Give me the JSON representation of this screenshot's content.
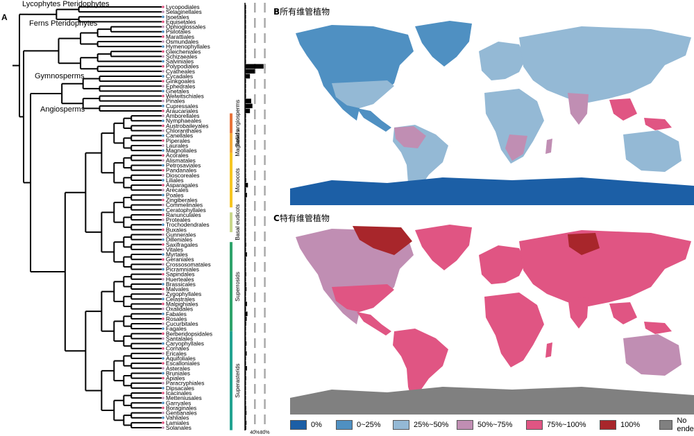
{
  "panels": {
    "a_letter": "A",
    "b_letter": "B",
    "b_title": "所有维管植物",
    "c_letter": "C",
    "c_title": "特有维管植物"
  },
  "tree": {
    "clade_labels": [
      {
        "id": "lycophytes",
        "text": "Lycophytes  Pteridophytes"
      },
      {
        "id": "ferns",
        "text": "Ferns  Pteridophytes"
      },
      {
        "id": "gymnosperms",
        "text": "Gymnosperms"
      },
      {
        "id": "angiosperms",
        "text": "Angiosperms"
      }
    ],
    "orders": [
      "Lycopodiales",
      "Selaginellales",
      "Isoetales",
      "Equisetales",
      "Ophioglossales",
      "Psilotales",
      "Marattiales",
      "Osmundales",
      "Hymenophyllales",
      "Gleicheniales",
      "Schizaeales",
      "Salviniales",
      "Polypodiales",
      "Cyatheales",
      "Cycadales",
      "Ginkgoales",
      "Ephedrales",
      "Gnetales",
      "Welwitschiales",
      "Pinales",
      "Cupressales",
      "Araucariales",
      "Amborellales",
      "Nymphaeales",
      "Austrobaileyales",
      "Chloranthales",
      "Canellales",
      "Piperales",
      "Laurales",
      "Magnoliales",
      "Acorales",
      "Alismatales",
      "Petrosaviales",
      "Pandanales",
      "Dioscoreales",
      "Liliales",
      "Asparagales",
      "Arecales",
      "Poales",
      "Zingiberales",
      "Commelinales",
      "Ceratophyllales",
      "Ranunculales",
      "Proteales",
      "Trochodendrales",
      "Buxales",
      "Gunnerales",
      "Dilleniales",
      "Saxifragales",
      "Vitales",
      "Myrtales",
      "Geraniales",
      "Crossosomatales",
      "Picramniales",
      "Sapindales",
      "Huerteales",
      "Brassicales",
      "Malvales",
      "Zygophyllales",
      "Celastrales",
      "Malpighiales",
      "Oxalidales",
      "Fabales",
      "Rosales",
      "Cucurbitales",
      "Fagales",
      "Berberidopsidales",
      "Santalales",
      "Caryophyllales",
      "Cornales",
      "Ericales",
      "Aquifoliales",
      "Escalloniales",
      "Asterales",
      "Bruniales",
      "Apiales",
      "Paracryphiales",
      "Dipsacales",
      "Icacinales",
      "Metteniusales",
      "Garryales",
      "Boraginales",
      "Gentianales",
      "Vahliales",
      "Lamiales",
      "Solanales"
    ],
    "groups": [
      {
        "id": "basal-angiosperms",
        "text": "Basal angiosperms",
        "color": "#e8743b",
        "from": 22,
        "to": 25
      },
      {
        "id": "magnoliids",
        "text": "Magnoliids",
        "color": "#f3a93b",
        "from": 26,
        "to": 29
      },
      {
        "id": "monocots",
        "text": "Monocots",
        "color": "#f6c623",
        "from": 30,
        "to": 40
      },
      {
        "id": "basal-eudicots",
        "text": "Basal eudicots",
        "color": "#c8d68a",
        "from": 42,
        "to": 45
      },
      {
        "id": "superrosids",
        "text": "Superrosids",
        "color": "#2ea36b",
        "from": 48,
        "to": 65
      },
      {
        "id": "superasterids",
        "text": "Superasterids",
        "color": "#22a391",
        "from": 66,
        "to": 85
      }
    ],
    "bar_values": [
      2,
      1,
      1,
      2,
      1,
      1,
      2,
      2,
      3,
      2,
      2,
      3,
      75,
      40,
      20,
      3,
      2,
      3,
      2,
      25,
      30,
      20,
      1,
      3,
      2,
      2,
      2,
      3,
      3,
      3,
      1,
      3,
      2,
      4,
      3,
      5,
      12,
      4,
      8,
      4,
      3,
      1,
      4,
      4,
      2,
      2,
      1,
      3,
      5,
      2,
      8,
      3,
      2,
      1,
      5,
      2,
      5,
      6,
      2,
      4,
      8,
      3,
      10,
      7,
      5,
      4,
      1,
      4,
      6,
      3,
      7,
      3,
      2,
      8,
      2,
      5,
      1,
      4,
      2,
      2,
      2,
      5,
      6,
      1,
      6,
      5
    ],
    "axis_ticks": [
      "40%",
      "80%"
    ]
  },
  "legend": [
    {
      "label": "0%",
      "color": "#1c5fa6"
    },
    {
      "label": "0~25%",
      "color": "#4f90c2"
    },
    {
      "label": "25%~50%",
      "color": "#94b9d5"
    },
    {
      "label": "50%~75%",
      "color": "#c08eb3"
    },
    {
      "label": "75%~100%",
      "color": "#e05583"
    },
    {
      "label": "100%",
      "color": "#a8262b"
    },
    {
      "label": "No endemic",
      "color": "#808080"
    }
  ]
}
